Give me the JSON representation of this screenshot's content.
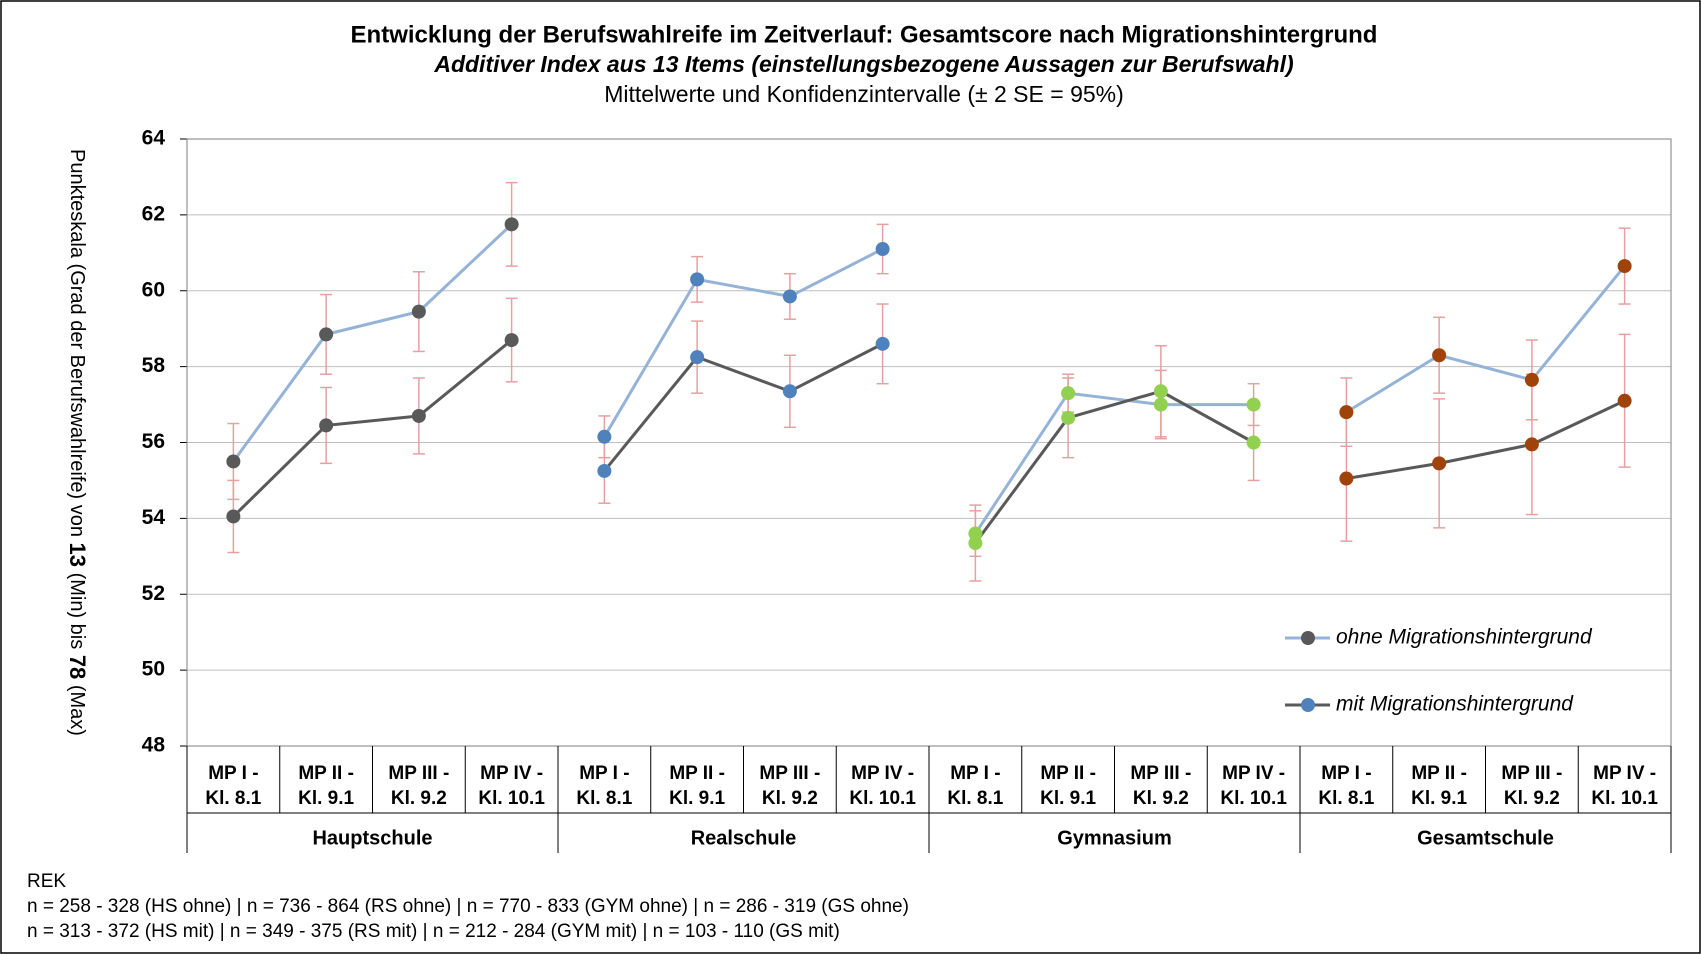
{
  "chart_data": {
    "type": "line",
    "title": "Entwicklung der Berufswahlreife im Zeitverlauf: Gesamtscore nach Migrationshintergrund",
    "subtitle": "Additiver Index aus 13 Items (einstellungsbezogene Aussagen zur Berufswahl)",
    "subtitle2": "Mittelwerte und Konfidenzintervalle (± 2 SE = 95%)",
    "y_label_parts": [
      {
        "text": "Punkteskala (Grad der Berufswahlreife) von ",
        "bold": false
      },
      {
        "text": "13",
        "bold": true
      },
      {
        "text": " (Min) bis ",
        "bold": false
      },
      {
        "text": "78",
        "bold": true
      },
      {
        "text": " (Max)",
        "bold": false
      }
    ],
    "categories": [
      [
        "MP I -",
        "Kl. 8.1"
      ],
      [
        "MP II -",
        "Kl. 9.1"
      ],
      [
        "MP III -",
        "Kl. 9.2"
      ],
      [
        "MP IV -",
        "Kl. 10.1"
      ],
      [
        "MP I -",
        "Kl. 8.1"
      ],
      [
        "MP II -",
        "Kl. 9.1"
      ],
      [
        "MP III -",
        "Kl. 9.2"
      ],
      [
        "MP IV -",
        "Kl. 10.1"
      ],
      [
        "MP I -",
        "Kl. 8.1"
      ],
      [
        "MP II -",
        "Kl. 9.1"
      ],
      [
        "MP III -",
        "Kl. 9.2"
      ],
      [
        "MP IV -",
        "Kl. 10.1"
      ],
      [
        "MP I -",
        "Kl. 8.1"
      ],
      [
        "MP II -",
        "Kl. 9.1"
      ],
      [
        "MP III -",
        "Kl. 9.2"
      ],
      [
        "MP IV -",
        "Kl. 10.1"
      ]
    ],
    "groups": [
      {
        "name": "Hauptschule",
        "marker_color": "#595959"
      },
      {
        "name": "Realschule",
        "marker_color": "#4f81bd"
      },
      {
        "name": "Gymnasium",
        "marker_color": "#92d050"
      },
      {
        "name": "Gesamtschule",
        "marker_color": "#a0430a"
      }
    ],
    "group_size": 4,
    "series": [
      {
        "name": "ohne Migrationshintergrund",
        "color": "#95b3d7",
        "legend_marker_color": "#595959",
        "values": [
          55.5,
          58.85,
          59.45,
          61.75,
          56.15,
          60.3,
          59.85,
          61.1,
          53.6,
          57.3,
          57.0,
          57.0,
          56.8,
          58.3,
          57.65,
          60.65
        ],
        "errors": [
          1.0,
          1.05,
          1.05,
          1.1,
          0.55,
          0.6,
          0.6,
          0.65,
          0.6,
          0.5,
          0.9,
          0.55,
          0.9,
          1.0,
          1.05,
          1.0
        ]
      },
      {
        "name": "mit Migrationshintergrund",
        "color": "#595959",
        "legend_marker_color": "#4f81bd",
        "values": [
          54.05,
          56.45,
          56.7,
          58.7,
          55.25,
          58.25,
          57.35,
          58.6,
          53.35,
          56.65,
          57.35,
          56.0,
          55.05,
          55.45,
          55.95,
          57.1
        ],
        "errors": [
          0.95,
          1.0,
          1.0,
          1.1,
          0.85,
          0.95,
          0.95,
          1.05,
          1.0,
          1.05,
          1.2,
          1.0,
          1.65,
          1.7,
          1.85,
          1.75
        ]
      }
    ],
    "error_color": "#e6a0a0",
    "ylim": [
      48,
      64
    ],
    "yticks": [
      48,
      50,
      52,
      54,
      56,
      58,
      60,
      62,
      64
    ],
    "grid": true,
    "legend": "right",
    "footer": [
      "REK",
      "n = 258 - 328 (HS ohne) | n = 736 - 864 (RS ohne) | n = 770 - 833 (GYM ohne) | n = 286 - 319 (GS ohne)",
      "n = 313 - 372 (HS mit) | n = 349 - 375 (RS mit) | n = 212 - 284 (GYM mit) | n = 103 - 110 (GS mit)"
    ]
  }
}
